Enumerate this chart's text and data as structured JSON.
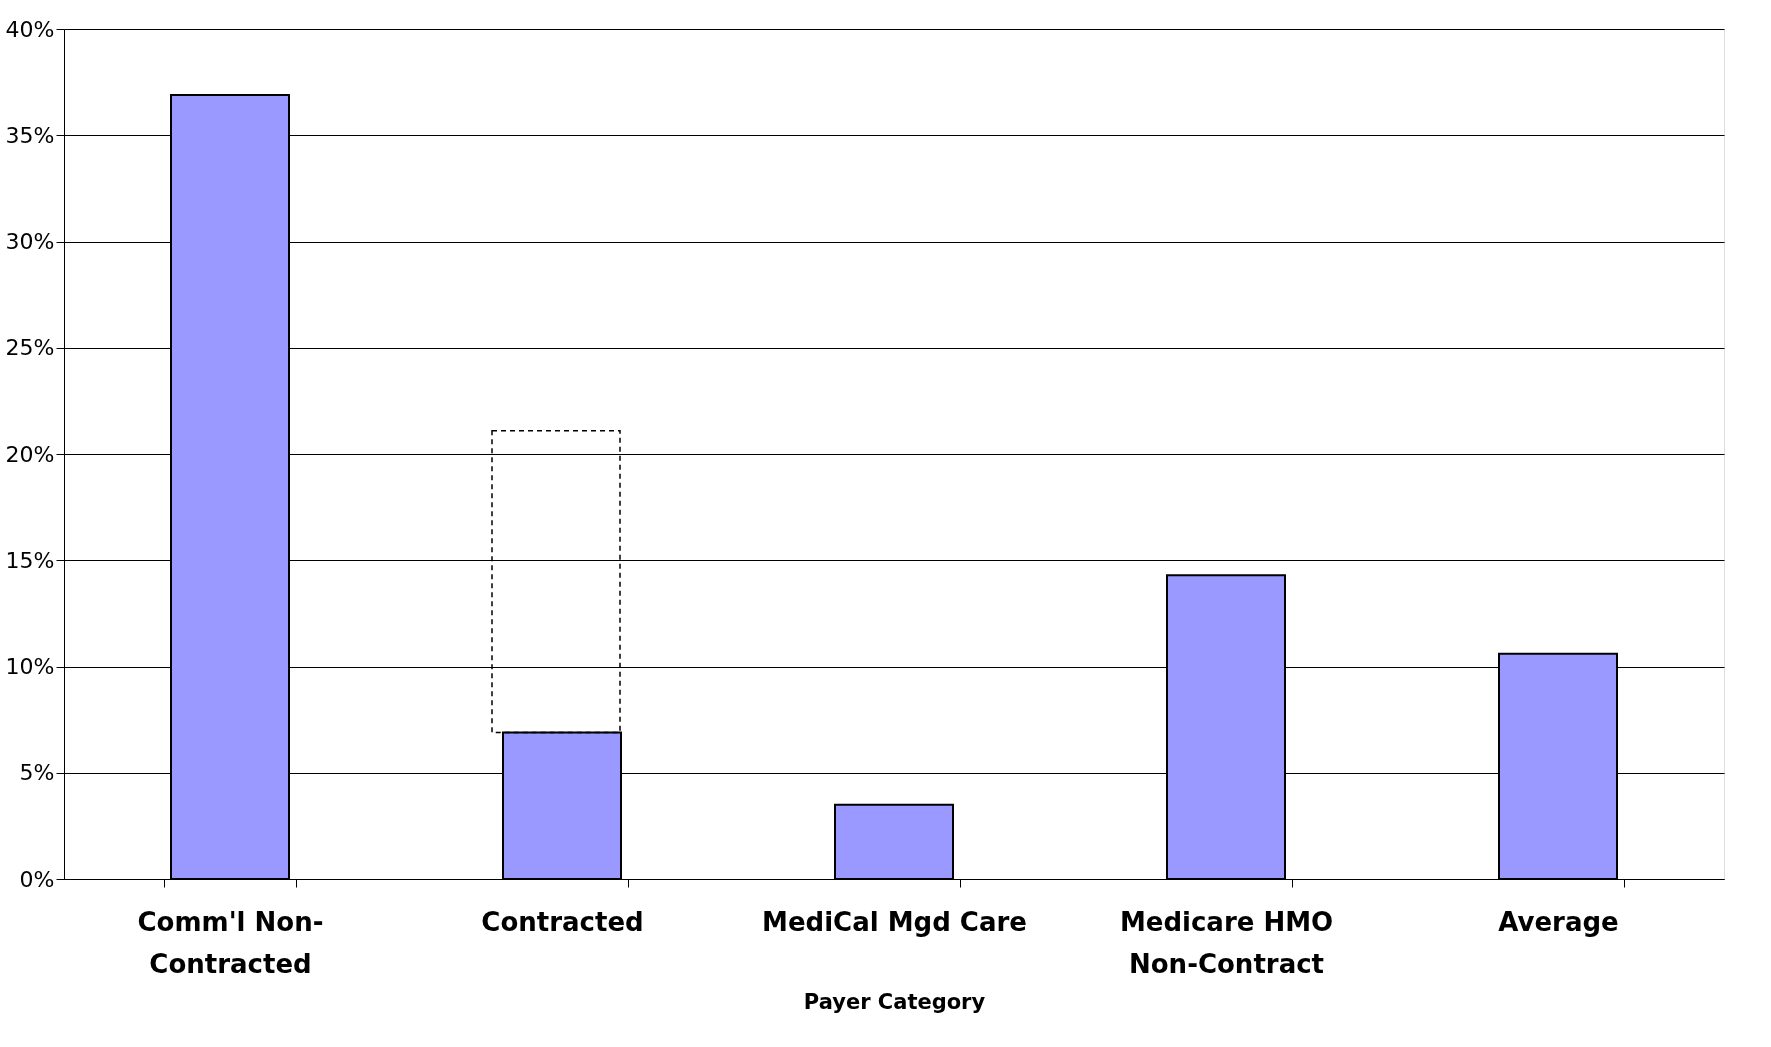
{
  "chart_data": {
    "type": "bar",
    "xlabel": "Payer Category",
    "categories": [
      "Comm'l Non-\nContracted",
      "Contracted",
      "MediCal Mgd Care",
      "Medicare HMO\nNon-Contract",
      "Average"
    ],
    "series": [
      {
        "color": "#9999ff",
        "values": [
          36.9,
          6.9,
          3.5,
          14.3,
          10.6
        ]
      },
      {
        "color": "#000000",
        "line_style": "dashed",
        "values": [
          null,
          14.2,
          null,
          null,
          null
        ]
      }
    ],
    "stacked": true,
    "ylim": [
      0,
      40
    ],
    "yticks": [
      {
        "value": 0,
        "label": "0%"
      },
      {
        "value": 5,
        "label": "5%"
      },
      {
        "value": 10,
        "label": "10%"
      },
      {
        "value": 15,
        "label": "15%"
      },
      {
        "value": 20,
        "label": "20%"
      },
      {
        "value": 25,
        "label": "25%"
      },
      {
        "value": 30,
        "label": "30%"
      },
      {
        "value": 35,
        "label": "35%"
      },
      {
        "value": 40,
        "label": "40%"
      }
    ],
    "grid": "y"
  }
}
